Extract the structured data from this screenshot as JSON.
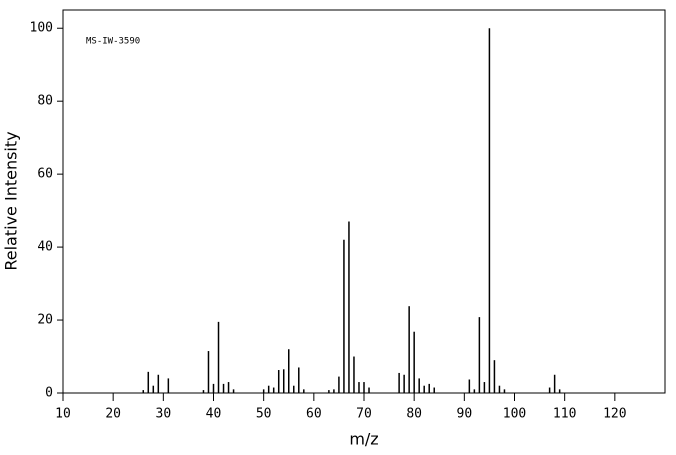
{
  "chart_data": {
    "type": "stick",
    "annotation": "MS-IW-3590",
    "xlabel": "m/z",
    "ylabel": "Relative Intensity",
    "x": [
      26,
      27,
      28,
      29,
      31,
      38,
      39,
      40,
      41,
      42,
      43,
      44,
      50,
      51,
      52,
      53,
      54,
      55,
      56,
      57,
      58,
      63,
      64,
      65,
      66,
      67,
      68,
      69,
      70,
      71,
      77,
      78,
      79,
      80,
      81,
      82,
      83,
      84,
      91,
      92,
      93,
      94,
      95,
      96,
      97,
      98,
      107,
      108,
      109
    ],
    "values": [
      0.8,
      5.8,
      2,
      5,
      4,
      0.8,
      11.5,
      2.5,
      19.5,
      2.5,
      3,
      1,
      1,
      2,
      1.5,
      6.3,
      6.5,
      12,
      2,
      7,
      1,
      0.8,
      1,
      4.5,
      42,
      47,
      10,
      3,
      3,
      1.5,
      5.5,
      5,
      23.8,
      16.8,
      4,
      2,
      2.5,
      1.5,
      3.7,
      1,
      20.8,
      3,
      100,
      9,
      2,
      1,
      1.5,
      5,
      1
    ],
    "color": "#000000",
    "xlim": [
      10,
      130
    ],
    "xticks": [
      10,
      20,
      30,
      40,
      50,
      60,
      70,
      80,
      90,
      100,
      110,
      120
    ],
    "ylim": [
      0,
      105
    ],
    "yticks": [
      0,
      20,
      40,
      60,
      80,
      100
    ]
  }
}
